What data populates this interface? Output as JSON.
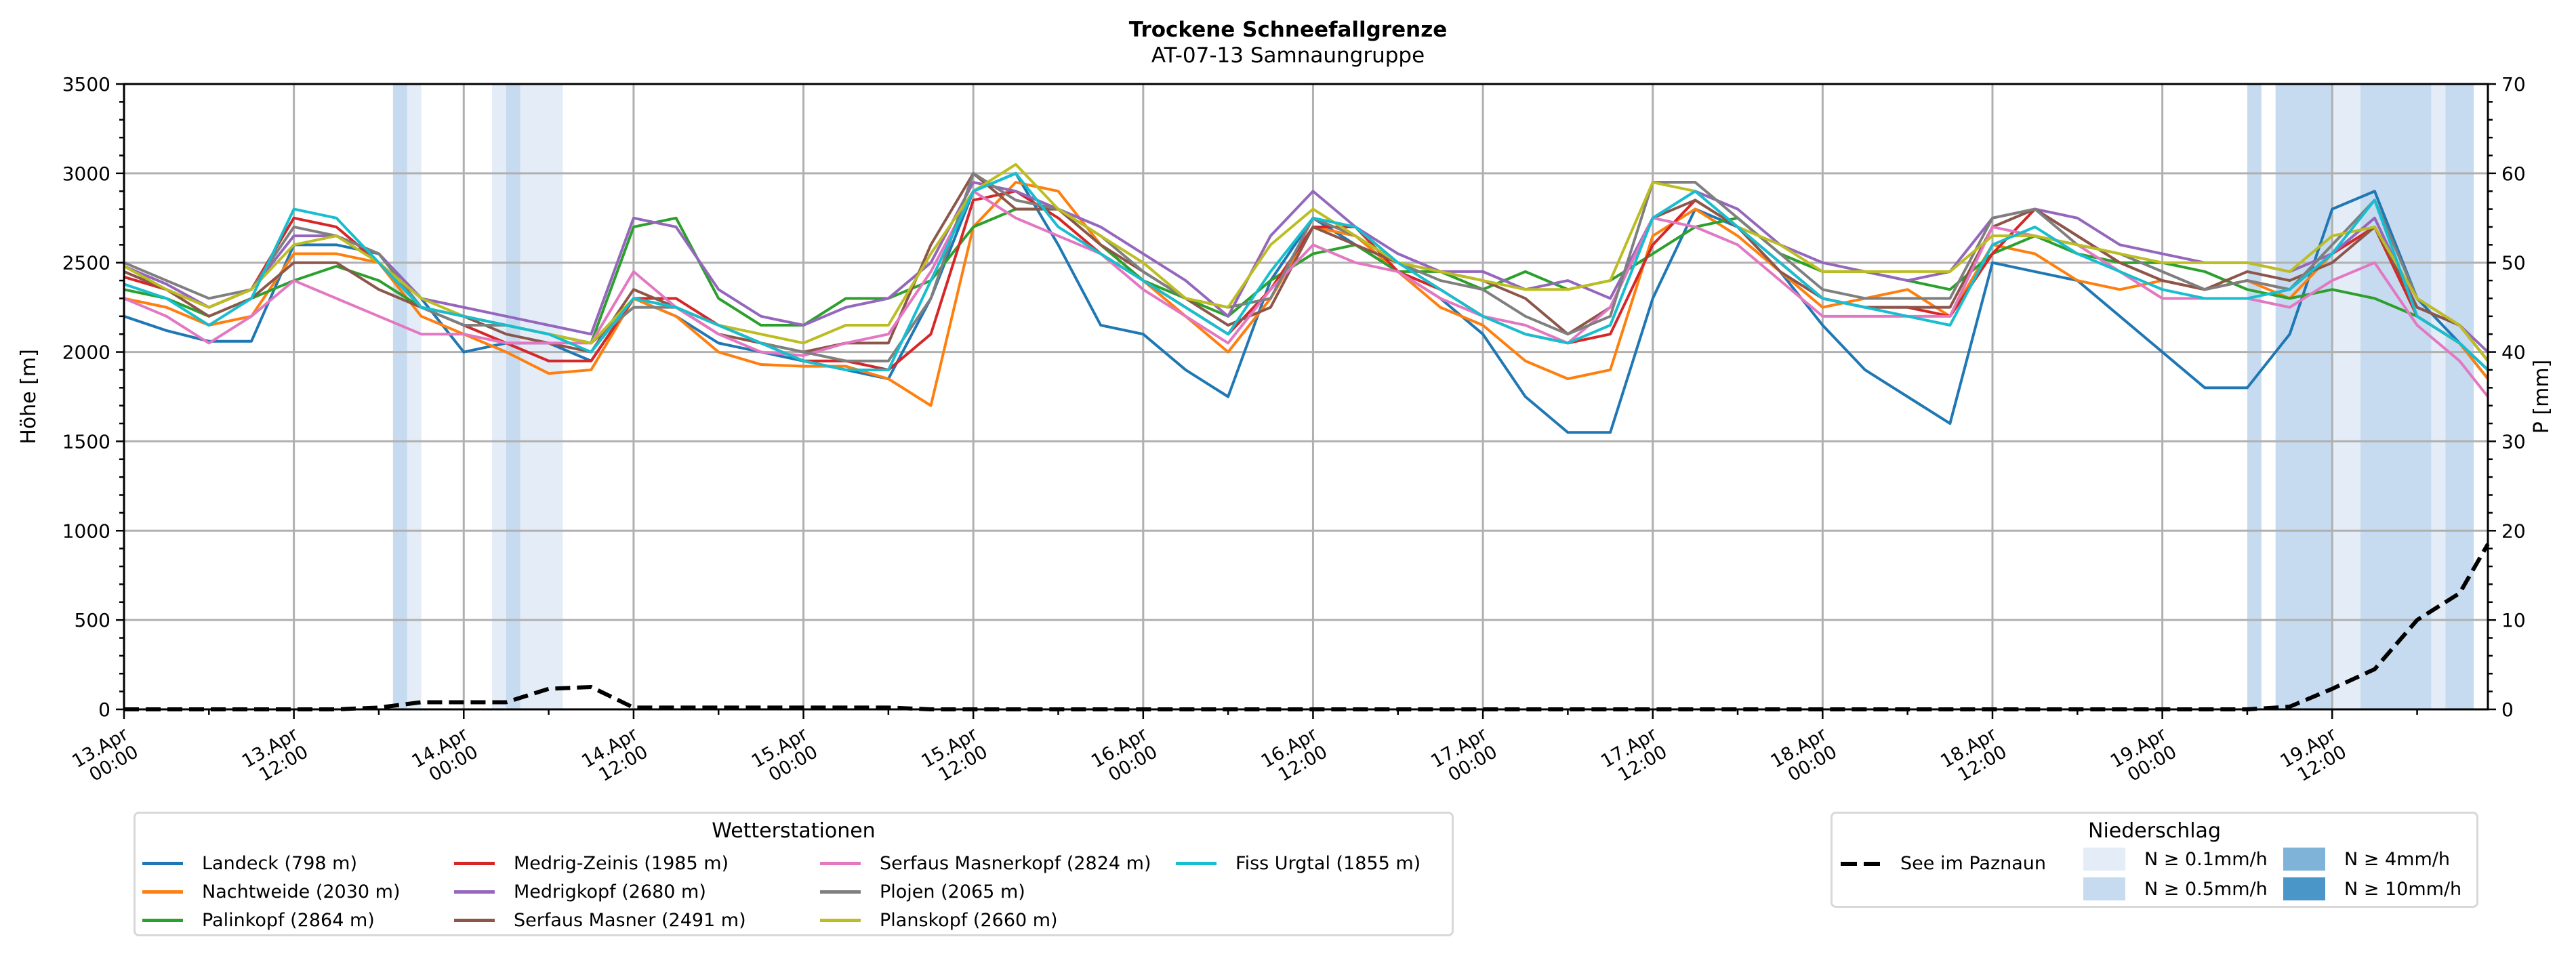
{
  "chart_data": {
    "type": "line",
    "title": "Trockene Schneefallgrenze",
    "subtitle": "AT-07-13 Samnaungruppe",
    "ylabel": "Höhe [m]",
    "y2label": "P [mm]",
    "ylim": [
      0,
      3500
    ],
    "y2lim": [
      0,
      70
    ],
    "yticks": [
      0,
      500,
      1000,
      1500,
      2000,
      2500,
      3000,
      3500
    ],
    "y2ticks": [
      0,
      10,
      20,
      30,
      40,
      50,
      60,
      70
    ],
    "grid": true,
    "x_start": "13.Apr 00:00",
    "x_unit": "hours since 13.Apr 00:00",
    "xlim": [
      0,
      167
    ],
    "xticks": [
      {
        "h": 0,
        "label": [
          "13.Apr",
          "00:00"
        ]
      },
      {
        "h": 12,
        "label": [
          "13.Apr",
          "12:00"
        ]
      },
      {
        "h": 24,
        "label": [
          "14.Apr",
          "00:00"
        ]
      },
      {
        "h": 36,
        "label": [
          "14.Apr",
          "12:00"
        ]
      },
      {
        "h": 48,
        "label": [
          "15.Apr",
          "00:00"
        ]
      },
      {
        "h": 60,
        "label": [
          "15.Apr",
          "12:00"
        ]
      },
      {
        "h": 72,
        "label": [
          "16.Apr",
          "00:00"
        ]
      },
      {
        "h": 84,
        "label": [
          "16.Apr",
          "12:00"
        ]
      },
      {
        "h": 96,
        "label": [
          "17.Apr",
          "00:00"
        ]
      },
      {
        "h": 108,
        "label": [
          "17.Apr",
          "12:00"
        ]
      },
      {
        "h": 120,
        "label": [
          "18.Apr",
          "00:00"
        ]
      },
      {
        "h": 132,
        "label": [
          "18.Apr",
          "12:00"
        ]
      },
      {
        "h": 144,
        "label": [
          "19.Apr",
          "00:00"
        ]
      },
      {
        "h": 156,
        "label": [
          "19.Apr",
          "12:00"
        ]
      }
    ],
    "x": [
      0,
      3,
      6,
      9,
      12,
      15,
      18,
      21,
      24,
      27,
      30,
      33,
      36,
      39,
      42,
      45,
      48,
      51,
      54,
      57,
      60,
      63,
      66,
      69,
      72,
      75,
      78,
      81,
      84,
      87,
      90,
      93,
      96,
      99,
      102,
      105,
      108,
      111,
      114,
      117,
      120,
      123,
      126,
      129,
      132,
      135,
      138,
      141,
      144,
      147,
      150,
      153,
      156,
      159,
      162,
      165,
      167
    ],
    "series": [
      {
        "name": "Landeck (798 m)",
        "color": "#1f77b4",
        "values": [
          2200,
          2120,
          2060,
          2060,
          2600,
          2600,
          2550,
          2300,
          2000,
          2050,
          2050,
          1950,
          2300,
          2200,
          2050,
          2000,
          1950,
          1900,
          1850,
          2300,
          2900,
          3000,
          2600,
          2150,
          2100,
          1900,
          1750,
          2400,
          2750,
          2600,
          2450,
          2300,
          2100,
          1750,
          1550,
          1550,
          2300,
          2800,
          2700,
          2450,
          2150,
          1900,
          1750,
          1600,
          2500,
          2450,
          2400,
          2200,
          2000,
          1800,
          1800,
          2100,
          2800,
          2900,
          2300,
          2050,
          1850
        ]
      },
      {
        "name": "Nachtweide (2030 m)",
        "color": "#ff7f0e",
        "values": [
          2300,
          2250,
          2150,
          2200,
          2550,
          2550,
          2500,
          2200,
          2100,
          2000,
          1880,
          1900,
          2300,
          2200,
          2000,
          1930,
          1920,
          1920,
          1850,
          1700,
          2700,
          2950,
          2900,
          2600,
          2400,
          2200,
          2000,
          2300,
          2700,
          2650,
          2450,
          2250,
          2150,
          1950,
          1850,
          1900,
          2650,
          2800,
          2650,
          2450,
          2250,
          2300,
          2350,
          2200,
          2600,
          2550,
          2400,
          2350,
          2400,
          2350,
          2400,
          2300,
          2550,
          2700,
          2200,
          2050,
          1850
        ]
      },
      {
        "name": "Palinkopf (2864 m)",
        "color": "#2ca02c",
        "values": [
          2350,
          2300,
          2200,
          2300,
          2400,
          2480,
          2400,
          2250,
          2200,
          2150,
          2100,
          2050,
          2700,
          2750,
          2300,
          2150,
          2150,
          2300,
          2300,
          2400,
          2700,
          2800,
          2800,
          2600,
          2400,
          2300,
          2200,
          2400,
          2550,
          2600,
          2450,
          2450,
          2350,
          2450,
          2350,
          2400,
          2550,
          2700,
          2750,
          2550,
          2450,
          2450,
          2400,
          2350,
          2550,
          2650,
          2550,
          2500,
          2500,
          2450,
          2350,
          2300,
          2350,
          2300,
          2200,
          2050,
          1900
        ]
      },
      {
        "name": "Medrig-Zeinis (1985 m)",
        "color": "#d62728",
        "values": [
          2420,
          2350,
          2250,
          2350,
          2750,
          2700,
          2500,
          2250,
          2150,
          2050,
          1950,
          1950,
          2300,
          2300,
          2150,
          2050,
          1950,
          1950,
          1900,
          2100,
          2850,
          2900,
          2750,
          2550,
          2400,
          2250,
          2100,
          2350,
          2700,
          2700,
          2450,
          2350,
          2200,
          2100,
          2050,
          2100,
          2600,
          2850,
          2700,
          2500,
          2300,
          2250,
          2250,
          2200,
          2550,
          2800,
          2650,
          2500,
          2400,
          2350,
          2400,
          2350,
          2550,
          2700,
          2200,
          2050,
          1900
        ]
      },
      {
        "name": "Medrigkopf (2680 m)",
        "color": "#9467bd",
        "values": [
          2480,
          2380,
          2250,
          2350,
          2650,
          2650,
          2550,
          2300,
          2250,
          2200,
          2150,
          2100,
          2750,
          2700,
          2350,
          2200,
          2150,
          2250,
          2300,
          2500,
          2950,
          2900,
          2800,
          2700,
          2550,
          2400,
          2200,
          2650,
          2900,
          2700,
          2550,
          2450,
          2450,
          2350,
          2400,
          2300,
          2750,
          2900,
          2800,
          2600,
          2500,
          2450,
          2400,
          2450,
          2750,
          2800,
          2750,
          2600,
          2550,
          2500,
          2500,
          2450,
          2550,
          2750,
          2250,
          2150,
          2000
        ]
      },
      {
        "name": "Serfaus Masner (2491 m)",
        "color": "#8c564b",
        "values": [
          2450,
          2350,
          2200,
          2300,
          2500,
          2500,
          2350,
          2250,
          2200,
          2100,
          2050,
          2000,
          2350,
          2250,
          2100,
          2050,
          2000,
          2050,
          2050,
          2600,
          3000,
          2800,
          2800,
          2600,
          2450,
          2300,
          2150,
          2250,
          2700,
          2600,
          2500,
          2450,
          2400,
          2300,
          2100,
          2250,
          2750,
          2850,
          2700,
          2450,
          2300,
          2250,
          2250,
          2250,
          2700,
          2800,
          2650,
          2500,
          2400,
          2350,
          2450,
          2400,
          2500,
          2700,
          2250,
          2150,
          1950
        ]
      },
      {
        "name": "Serfaus Masnerkopf (2824 m)",
        "color": "#e377c2",
        "values": [
          2300,
          2200,
          2050,
          2200,
          2400,
          2300,
          2200,
          2100,
          2100,
          2050,
          2050,
          2050,
          2450,
          2250,
          2100,
          2000,
          1980,
          2050,
          2100,
          2450,
          2900,
          2750,
          2650,
          2550,
          2350,
          2200,
          2050,
          2350,
          2600,
          2500,
          2450,
          2300,
          2200,
          2150,
          2050,
          2250,
          2750,
          2700,
          2600,
          2400,
          2200,
          2200,
          2200,
          2200,
          2700,
          2650,
          2600,
          2450,
          2300,
          2300,
          2300,
          2250,
          2400,
          2500,
          2150,
          1950,
          1750
        ]
      },
      {
        "name": "Plojen (2065 m)",
        "color": "#7f7f7f",
        "values": [
          2500,
          2400,
          2300,
          2350,
          2700,
          2650,
          2550,
          2250,
          2150,
          2150,
          2100,
          2050,
          2250,
          2250,
          2150,
          2050,
          2000,
          1950,
          1950,
          2300,
          3000,
          2850,
          2800,
          2650,
          2450,
          2300,
          2250,
          2300,
          2750,
          2650,
          2500,
          2400,
          2350,
          2200,
          2100,
          2200,
          2950,
          2950,
          2750,
          2550,
          2350,
          2300,
          2300,
          2300,
          2750,
          2800,
          2600,
          2550,
          2450,
          2350,
          2400,
          2350,
          2600,
          2850,
          2300,
          2150,
          1950
        ]
      },
      {
        "name": "Planskopf (2660 m)",
        "color": "#bcbd22",
        "values": [
          2480,
          2350,
          2250,
          2350,
          2600,
          2650,
          2500,
          2300,
          2200,
          2150,
          2100,
          2050,
          2300,
          2250,
          2150,
          2100,
          2050,
          2150,
          2150,
          2550,
          2900,
          3050,
          2800,
          2650,
          2500,
          2300,
          2250,
          2600,
          2800,
          2650,
          2500,
          2450,
          2400,
          2350,
          2350,
          2400,
          2950,
          2900,
          2700,
          2600,
          2450,
          2450,
          2450,
          2450,
          2650,
          2650,
          2600,
          2550,
          2500,
          2500,
          2500,
          2450,
          2650,
          2700,
          2300,
          2150,
          1950
        ]
      },
      {
        "name": "Fiss Urgtal  (1855 m)",
        "color": "#17becf",
        "values": [
          2380,
          2300,
          2150,
          2300,
          2800,
          2750,
          2500,
          2250,
          2200,
          2150,
          2100,
          2000,
          2300,
          2250,
          2150,
          2050,
          1950,
          1900,
          1900,
          2400,
          2900,
          3000,
          2700,
          2550,
          2400,
          2250,
          2100,
          2450,
          2750,
          2700,
          2500,
          2350,
          2200,
          2100,
          2050,
          2150,
          2750,
          2900,
          2700,
          2500,
          2300,
          2250,
          2200,
          2150,
          2600,
          2700,
          2550,
          2450,
          2350,
          2300,
          2300,
          2350,
          2550,
          2850,
          2200,
          2050,
          1900
        ]
      },
      {
        "name": "See im Paznaun",
        "color": "#000000",
        "dashed": true,
        "axis": "right",
        "values": [
          0,
          0,
          0,
          0,
          0,
          0,
          0.2,
          0.8,
          0.8,
          0.8,
          2.3,
          2.5,
          0.2,
          0.2,
          0.2,
          0.2,
          0.2,
          0.2,
          0.2,
          0,
          0,
          0,
          0,
          0,
          0,
          0,
          0,
          0,
          0,
          0,
          0,
          0,
          0,
          0,
          0,
          0,
          0,
          0,
          0,
          0,
          0,
          0,
          0,
          0,
          0,
          0,
          0,
          0,
          0,
          0,
          0,
          0.3,
          2.3,
          4.5,
          10,
          13,
          18.5
        ]
      }
    ],
    "precip_bands": [
      {
        "start": 19,
        "end": 20,
        "level": "N ≥ 0.5mm/h"
      },
      {
        "start": 20,
        "end": 21,
        "level": "N ≥ 0.1mm/h"
      },
      {
        "start": 26,
        "end": 27,
        "level": "N ≥ 0.1mm/h"
      },
      {
        "start": 27,
        "end": 28,
        "level": "N ≥ 0.5mm/h"
      },
      {
        "start": 28,
        "end": 31,
        "level": "N ≥ 0.1mm/h"
      },
      {
        "start": 150,
        "end": 151,
        "level": "N ≥ 0.5mm/h"
      },
      {
        "start": 152,
        "end": 156,
        "level": "N ≥ 0.5mm/h"
      },
      {
        "start": 156,
        "end": 158,
        "level": "N ≥ 0.1mm/h"
      },
      {
        "start": 158,
        "end": 163,
        "level": "N ≥ 0.5mm/h"
      },
      {
        "start": 163,
        "end": 164,
        "level": "N ≥ 0.1mm/h"
      },
      {
        "start": 164,
        "end": 166,
        "level": "N ≥ 0.5mm/h"
      }
    ],
    "legend_stations": {
      "title": "Wetterstationen",
      "placement": "bottom-left"
    },
    "legend_precip": {
      "title": "Niederschlag",
      "placement": "bottom-right",
      "line_label": "See im Paznaun",
      "levels": [
        {
          "label": "N ≥ 0.1mm/h",
          "color": "#e3ecf7"
        },
        {
          "label": "N ≥ 0.5mm/h",
          "color": "#c6dbef"
        },
        {
          "label": "N ≥ 4mm/h",
          "color": "#7fb4d8"
        },
        {
          "label": "N ≥ 10mm/h",
          "color": "#4a96c9"
        }
      ]
    }
  }
}
